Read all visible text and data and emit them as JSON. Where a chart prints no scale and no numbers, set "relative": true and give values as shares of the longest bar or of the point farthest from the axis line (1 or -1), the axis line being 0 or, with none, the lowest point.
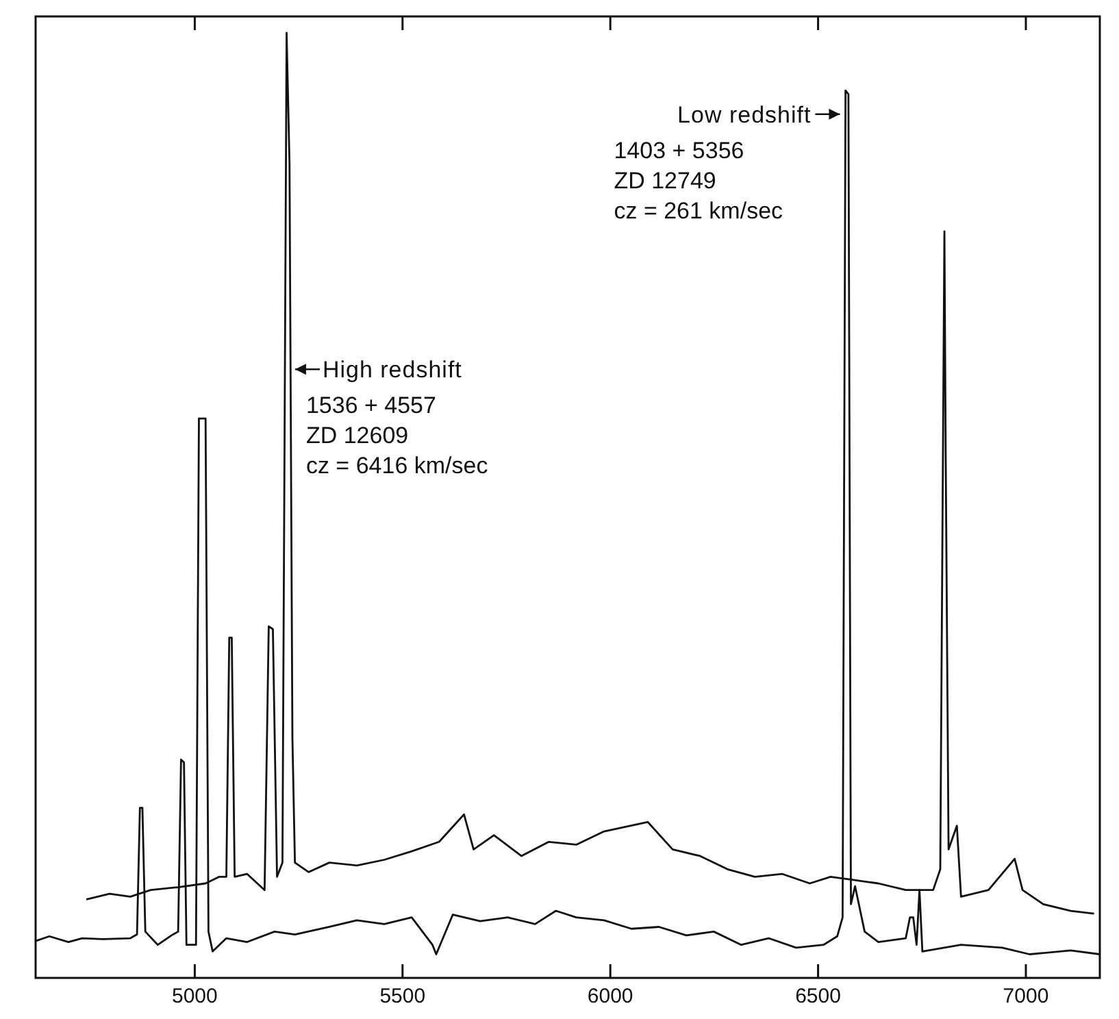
{
  "chart_data": {
    "type": "line",
    "relative": true,
    "xlim": [
      4617,
      7178
    ],
    "xticks": [
      5000,
      5500,
      6000,
      6500,
      7000
    ],
    "marker": "none",
    "line_style": "solid",
    "annotations": [
      {
        "text": "High redshift\n1536 + 4557\nZD 12609\ncz = 6416 km/sec",
        "x": 5225,
        "y": 0.644
      },
      {
        "text": "Low redshift\n1403 + 5356\nZD 12749\ncz = 261 km/sec",
        "x": 6569,
        "y": 0.914
      }
    ],
    "series": [
      {
        "color": "#111111",
        "x": [
          4617,
          4650,
          4696,
          4729,
          4779,
          4845,
          4861,
          4868,
          4874,
          4881,
          4911,
          4944,
          4960,
          4967,
          4974,
          4980,
          5003,
          5010,
          5026,
          5033,
          5043,
          5076,
          5126,
          5192,
          5241,
          5324,
          5390,
          5456,
          5522,
          5572,
          5581,
          5621,
          5687,
          5753,
          5819,
          5869,
          5918,
          5985,
          6051,
          6117,
          6183,
          6249,
          6315,
          6381,
          6447,
          6513,
          6546,
          6559,
          6566,
          6573,
          6579,
          6589,
          6612,
          6645,
          6711,
          6721,
          6729,
          6737,
          6744,
          6751,
          6844,
          6943,
          7009,
          7108,
          7178
        ],
        "values": [
          0.039,
          0.044,
          0.038,
          0.042,
          0.041,
          0.042,
          0.046,
          0.18,
          0.18,
          0.049,
          0.035,
          0.045,
          0.049,
          0.231,
          0.228,
          0.035,
          0.035,
          0.592,
          0.592,
          0.049,
          0.028,
          0.042,
          0.038,
          0.049,
          0.046,
          0.054,
          0.061,
          0.057,
          0.064,
          0.035,
          0.025,
          0.067,
          0.06,
          0.064,
          0.057,
          0.071,
          0.064,
          0.061,
          0.052,
          0.054,
          0.045,
          0.049,
          0.035,
          0.042,
          0.032,
          0.035,
          0.044,
          0.064,
          0.939,
          0.935,
          0.078,
          0.097,
          0.049,
          0.038,
          0.042,
          0.064,
          0.064,
          0.035,
          0.093,
          0.028,
          0.035,
          0.032,
          0.025,
          0.029,
          0.025
        ]
      },
      {
        "color": "#111111",
        "x": [
          4739,
          4795,
          4845,
          4894,
          4960,
          5026,
          5059,
          5076,
          5083,
          5089,
          5096,
          5126,
          5168,
          5178,
          5188,
          5198,
          5211,
          5221,
          5228,
          5235,
          5241,
          5274,
          5324,
          5390,
          5456,
          5522,
          5588,
          5648,
          5671,
          5720,
          5786,
          5852,
          5918,
          5985,
          6090,
          6150,
          6216,
          6282,
          6348,
          6414,
          6480,
          6530,
          6579,
          6645,
          6711,
          6777,
          6794,
          6804,
          6807,
          6814,
          6834,
          6844,
          6910,
          6973,
          6992,
          7042,
          7108,
          7164
        ],
        "values": [
          0.083,
          0.089,
          0.086,
          0.093,
          0.096,
          0.1,
          0.107,
          0.107,
          0.36,
          0.36,
          0.107,
          0.11,
          0.093,
          0.372,
          0.369,
          0.107,
          0.122,
          1,
          0.862,
          0.253,
          0.122,
          0.112,
          0.122,
          0.119,
          0.125,
          0.134,
          0.144,
          0.173,
          0.136,
          0.151,
          0.129,
          0.144,
          0.141,
          0.155,
          0.165,
          0.136,
          0.129,
          0.115,
          0.107,
          0.11,
          0.1,
          0.107,
          0.104,
          0.1,
          0.093,
          0.093,
          0.115,
          0.79,
          0.56,
          0.136,
          0.161,
          0.086,
          0.093,
          0.126,
          0.093,
          0.078,
          0.071,
          0.068
        ]
      }
    ]
  }
}
